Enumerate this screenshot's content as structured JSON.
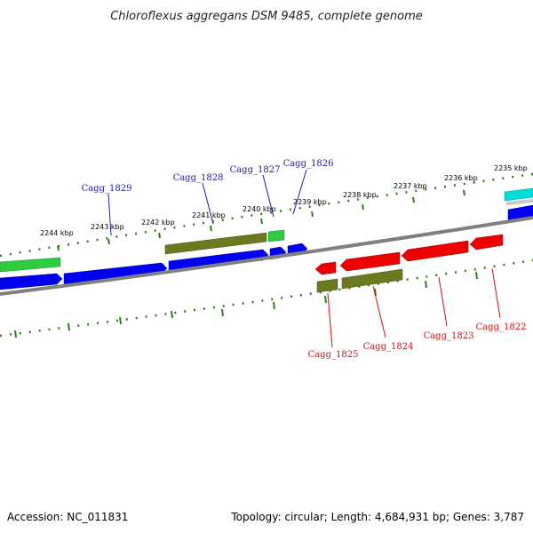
{
  "title": "Chloroflexus aggregans DSM 9485, complete genome",
  "footer": {
    "accession": "Accession: NC_011831",
    "summary": "Topology: circular; Length: 4,684,931 bp; Genes: 3,787"
  },
  "colors": {
    "forward_cds": "#0000ee",
    "reverse_cds": "#ee0000",
    "gene_olive": "#6b7a1e",
    "gene_green": "#2ecc40",
    "gene_cyan": "#00dddd",
    "backbone": "#808080",
    "forward_label": "#1a1aaa",
    "reverse_label": "#cc1111",
    "tick": "#2e7d1a"
  },
  "ticks_upper": [
    "2244 kbp",
    "2243 kbp",
    "2242 kbp",
    "2241 kbp",
    "2240 kbp",
    "2239 kbp",
    "2238 kbp",
    "2237 kbp",
    "2236 kbp",
    "2235 kbp"
  ],
  "genes_forward": [
    "Cagg_1829",
    "Cagg_1828",
    "Cagg_1827",
    "Cagg_1826"
  ],
  "genes_reverse": [
    "Cagg_1825",
    "Cagg_1824",
    "Cagg_1823",
    "Cagg_1822"
  ]
}
